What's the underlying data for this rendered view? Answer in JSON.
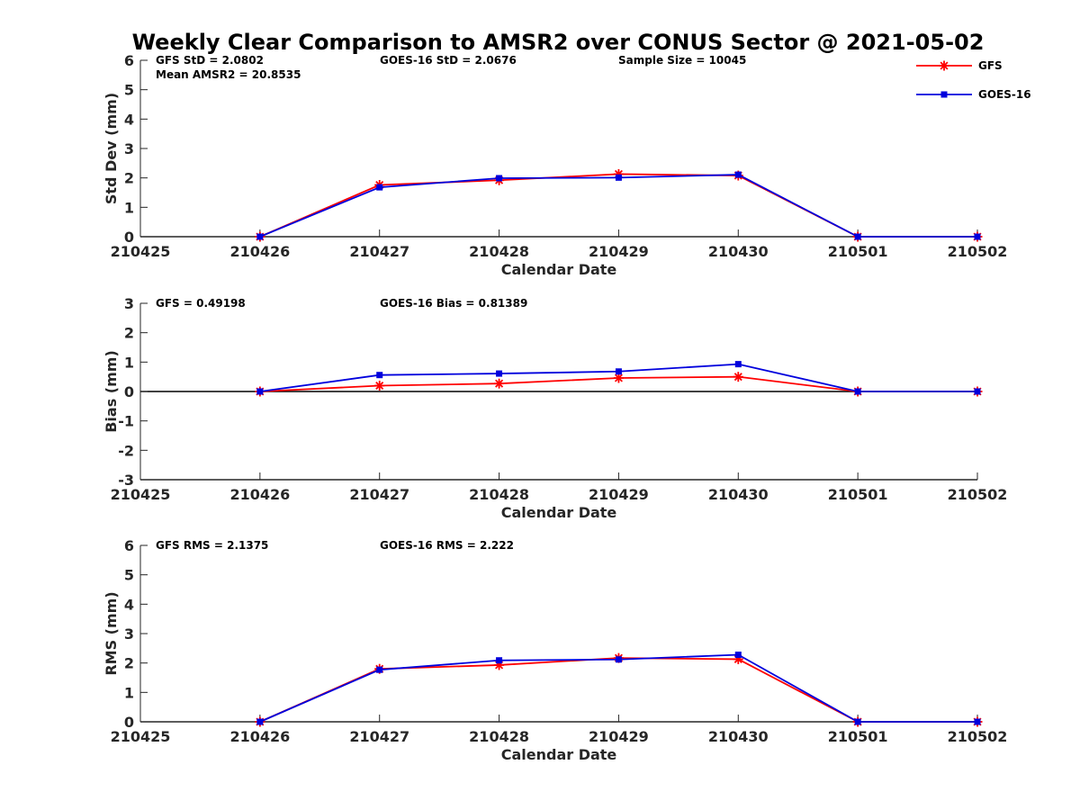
{
  "title": "Weekly Clear Comparison to AMSR2 over CONUS Sector @ 2021-05-02",
  "legend": {
    "placement": "top-right",
    "items": [
      {
        "label": "GFS",
        "color": "#ff0000",
        "marker": "asterisk"
      },
      {
        "label": "GOES-16",
        "color": "#0000dd",
        "marker": "square"
      }
    ]
  },
  "chart_data": [
    {
      "type": "line",
      "xlabel": "Calendar Date",
      "ylabel": "Std Dev (mm)",
      "x_ticks": [
        "210425",
        "210426",
        "210427",
        "210428",
        "210429",
        "210430",
        "210501",
        "210502"
      ],
      "ylim": [
        0,
        6
      ],
      "y_ticks": [
        "0",
        "1",
        "2",
        "3",
        "4",
        "5",
        "6"
      ],
      "zero_line": false,
      "annotations": [
        {
          "text": "GFS StD = 2.0802",
          "row": 0,
          "col": 0
        },
        {
          "text": "GOES-16 StD = 2.0676",
          "row": 0,
          "col": 1
        },
        {
          "text": "Sample Size = 10045",
          "row": 0,
          "col": 2
        },
        {
          "text": "Mean AMSR2 = 20.8535",
          "row": 1,
          "col": 0
        }
      ],
      "x": [
        "210426",
        "210427",
        "210428",
        "210429",
        "210430",
        "210501",
        "210502"
      ],
      "series": [
        {
          "name": "GFS",
          "color": "#ff0000",
          "marker": "asterisk",
          "values": [
            0,
            1.76,
            1.92,
            2.13,
            2.08,
            0,
            0
          ]
        },
        {
          "name": "GOES-16",
          "color": "#0000dd",
          "marker": "square",
          "values": [
            0,
            1.68,
            1.99,
            2.01,
            2.11,
            0,
            0
          ]
        }
      ]
    },
    {
      "type": "line",
      "xlabel": "Calendar Date",
      "ylabel": "Bias (mm)",
      "x_ticks": [
        "210425",
        "210426",
        "210427",
        "210428",
        "210429",
        "210430",
        "210501",
        "210502"
      ],
      "ylim": [
        -3,
        3
      ],
      "y_ticks": [
        "-3",
        "-2",
        "-1",
        "0",
        "1",
        "2",
        "3"
      ],
      "zero_line": true,
      "annotations": [
        {
          "text": "GFS = 0.49198",
          "row": 0,
          "col": 0
        },
        {
          "text": "GOES-16 Bias  = 0.81389",
          "row": 0,
          "col": 1
        }
      ],
      "x": [
        "210426",
        "210427",
        "210428",
        "210429",
        "210430",
        "210501",
        "210502"
      ],
      "series": [
        {
          "name": "GFS",
          "color": "#ff0000",
          "marker": "asterisk",
          "values": [
            0,
            0.2,
            0.27,
            0.46,
            0.5,
            0,
            0
          ]
        },
        {
          "name": "GOES-16",
          "color": "#0000dd",
          "marker": "square",
          "values": [
            0,
            0.56,
            0.61,
            0.68,
            0.93,
            0,
            0
          ]
        }
      ]
    },
    {
      "type": "line",
      "xlabel": "Calendar Date",
      "ylabel": "RMS (mm)",
      "x_ticks": [
        "210425",
        "210426",
        "210427",
        "210428",
        "210429",
        "210430",
        "210501",
        "210502"
      ],
      "ylim": [
        0,
        6
      ],
      "y_ticks": [
        "0",
        "1",
        "2",
        "3",
        "4",
        "5",
        "6"
      ],
      "zero_line": false,
      "annotations": [
        {
          "text": "GFS RMS = 2.1375",
          "row": 0,
          "col": 0
        },
        {
          "text": "GOES-16 RMS = 2.222",
          "row": 0,
          "col": 1
        }
      ],
      "x": [
        "210426",
        "210427",
        "210428",
        "210429",
        "210430",
        "210501",
        "210502"
      ],
      "series": [
        {
          "name": "GFS",
          "color": "#ff0000",
          "marker": "asterisk",
          "values": [
            0,
            1.8,
            1.93,
            2.17,
            2.13,
            0,
            0
          ]
        },
        {
          "name": "GOES-16",
          "color": "#0000dd",
          "marker": "square",
          "values": [
            0,
            1.77,
            2.09,
            2.12,
            2.28,
            0,
            0
          ]
        }
      ]
    }
  ]
}
